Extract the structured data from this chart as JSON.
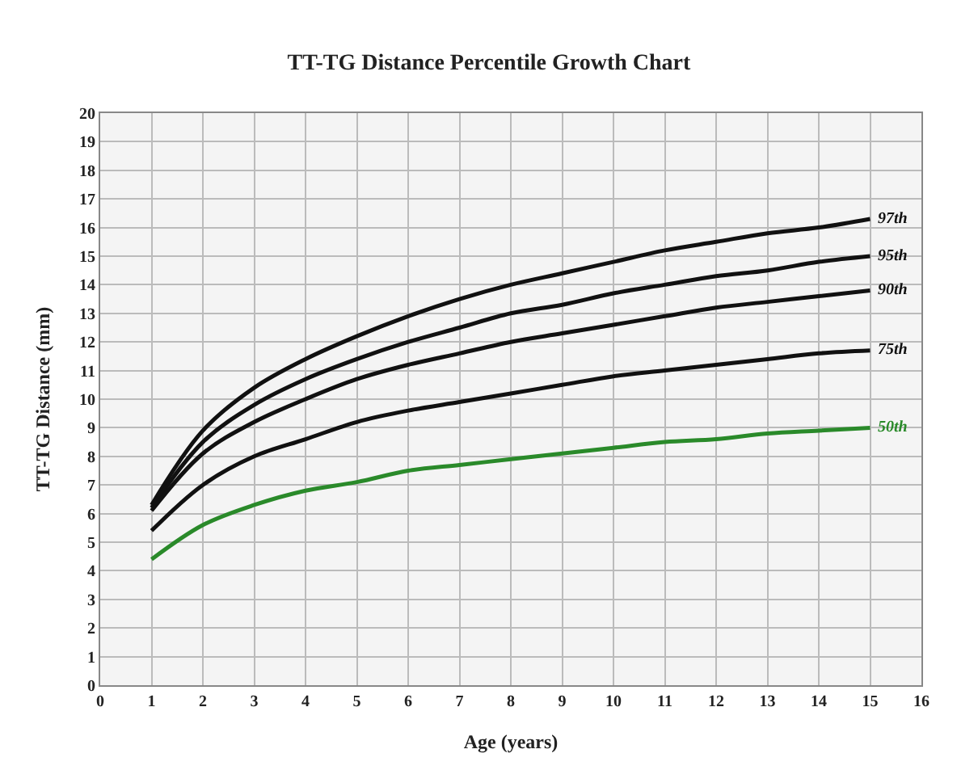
{
  "chart_data": {
    "type": "line",
    "title": "TT-TG Distance Percentile Growth Chart",
    "xlabel": "Age (years)",
    "ylabel": "TT-TG Distance (mm)",
    "x": [
      1,
      2,
      3,
      4,
      5,
      6,
      7,
      8,
      9,
      10,
      11,
      12,
      13,
      14,
      15
    ],
    "series": [
      {
        "name": "97th",
        "color": "#111111",
        "values": [
          6.3,
          8.9,
          10.4,
          11.4,
          12.2,
          12.9,
          13.5,
          14.0,
          14.4,
          14.8,
          15.2,
          15.5,
          15.8,
          16.0,
          16.3
        ]
      },
      {
        "name": "95th",
        "color": "#111111",
        "values": [
          6.2,
          8.5,
          9.8,
          10.7,
          11.4,
          12.0,
          12.5,
          13.0,
          13.3,
          13.7,
          14.0,
          14.3,
          14.5,
          14.8,
          15.0
        ]
      },
      {
        "name": "90th",
        "color": "#111111",
        "values": [
          6.1,
          8.1,
          9.2,
          10.0,
          10.7,
          11.2,
          11.6,
          12.0,
          12.3,
          12.6,
          12.9,
          13.2,
          13.4,
          13.6,
          13.8
        ]
      },
      {
        "name": "75th",
        "color": "#111111",
        "values": [
          5.4,
          7.0,
          8.0,
          8.6,
          9.2,
          9.6,
          9.9,
          10.2,
          10.5,
          10.8,
          11.0,
          11.2,
          11.4,
          11.6,
          11.7
        ]
      },
      {
        "name": "50th",
        "color": "#2a8a2a",
        "values": [
          4.4,
          5.6,
          6.3,
          6.8,
          7.1,
          7.5,
          7.7,
          7.9,
          8.1,
          8.3,
          8.5,
          8.6,
          8.8,
          8.9,
          9.0
        ]
      }
    ],
    "xlim": [
      0,
      16
    ],
    "xticks": [
      0,
      1,
      2,
      3,
      4,
      5,
      6,
      7,
      8,
      9,
      10,
      11,
      12,
      13,
      14,
      15,
      16
    ],
    "ylim": [
      0,
      20
    ],
    "yticks": [
      0,
      1,
      2,
      3,
      4,
      5,
      6,
      7,
      8,
      9,
      10,
      11,
      12,
      13,
      14,
      15,
      16,
      17,
      18,
      19,
      20
    ],
    "grid": true,
    "legend": false,
    "marker": "none",
    "line_style": "solid"
  }
}
